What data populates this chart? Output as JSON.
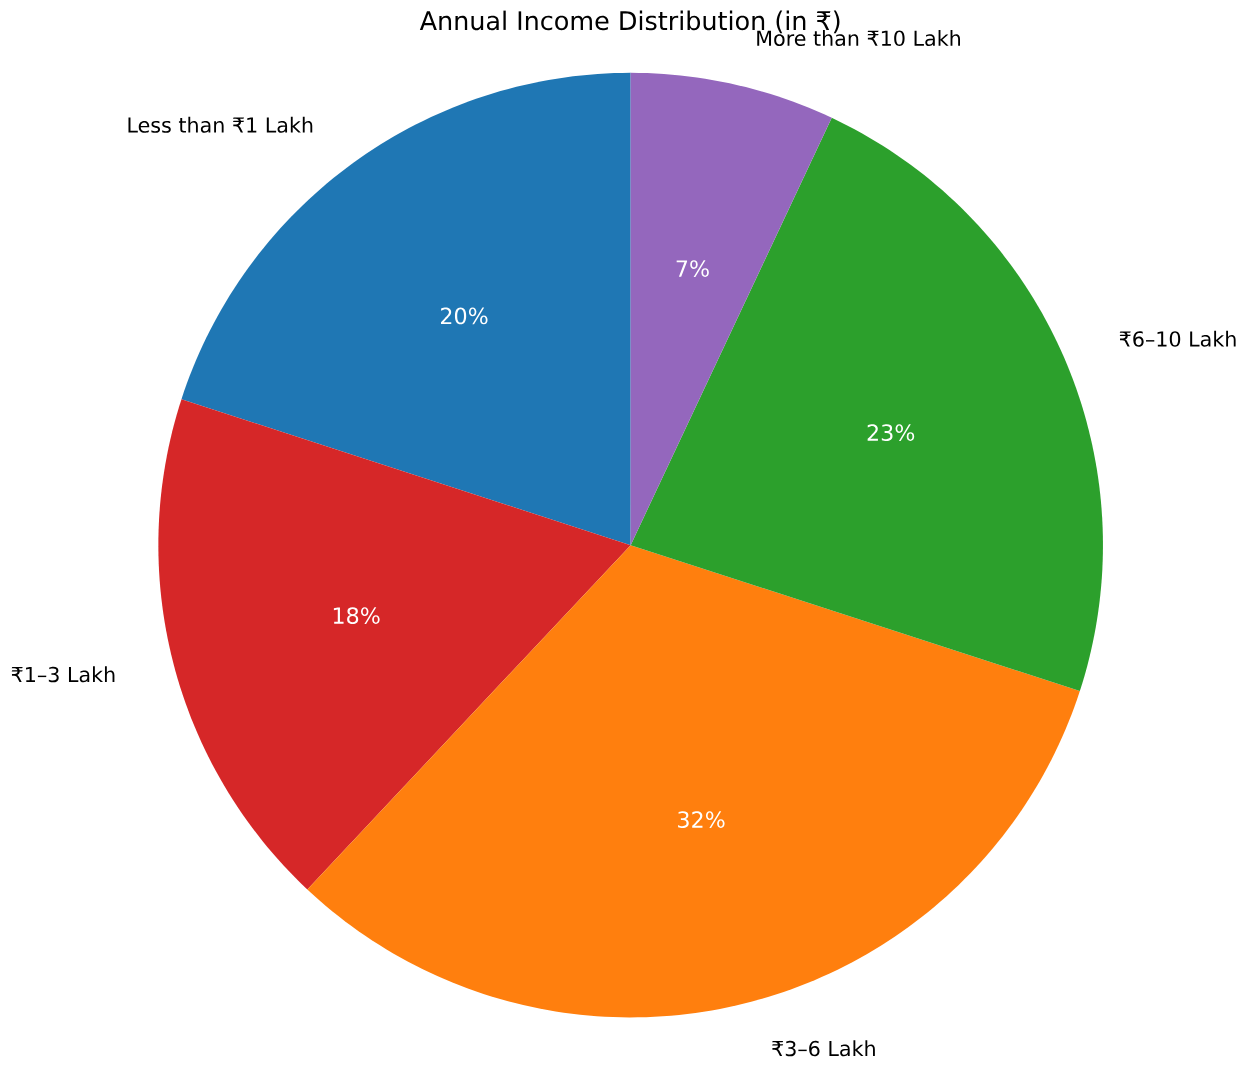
{
  "chart_data": {
    "type": "pie",
    "title": "Annual Income Distribution (in ₹)",
    "categories": [
      "Less than ₹1 Lakh",
      "₹1–3 Lakh",
      "₹3–6 Lakh",
      "₹6–10 Lakh",
      "More than ₹10 Lakh"
    ],
    "values": [
      20,
      18,
      32,
      23,
      7
    ],
    "value_labels": [
      "20%",
      "18%",
      "32%",
      "23%",
      "7%"
    ],
    "colors": [
      "#1f77b4",
      "#d62728",
      "#ff7f0e",
      "#2ca02c",
      "#9467bd"
    ]
  }
}
